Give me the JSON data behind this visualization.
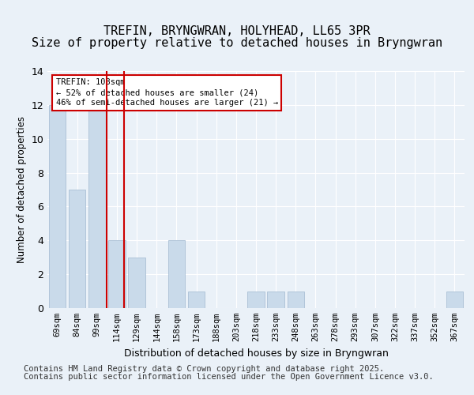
{
  "title1": "TREFIN, BRYNGWRAN, HOLYHEAD, LL65 3PR",
  "title2": "Size of property relative to detached houses in Bryngwran",
  "xlabel": "Distribution of detached houses by size in Bryngwran",
  "ylabel": "Number of detached properties",
  "categories": [
    "69sqm",
    "84sqm",
    "99sqm",
    "114sqm",
    "129sqm",
    "144sqm",
    "158sqm",
    "173sqm",
    "188sqm",
    "203sqm",
    "218sqm",
    "233sqm",
    "248sqm",
    "263sqm",
    "278sqm",
    "293sqm",
    "307sqm",
    "322sqm",
    "337sqm",
    "352sqm",
    "367sqm"
  ],
  "values": [
    12,
    7,
    12,
    4,
    3,
    0,
    4,
    1,
    0,
    0,
    1,
    1,
    1,
    0,
    0,
    0,
    0,
    0,
    0,
    0,
    1
  ],
  "bar_color": "#c9daea",
  "bar_edge_color": "#a0b8cf",
  "red_line_index": 3,
  "red_line_color": "#cc0000",
  "annotation_title": "TREFIN: 108sqm",
  "annotation_line1": "← 52% of detached houses are smaller (24)",
  "annotation_line2": "46% of semi-detached houses are larger (21) →",
  "annotation_box_color": "#ffffff",
  "annotation_border_color": "#cc0000",
  "ylim": [
    0,
    14
  ],
  "yticks": [
    0,
    2,
    4,
    6,
    8,
    10,
    12,
    14
  ],
  "footer_line1": "Contains HM Land Registry data © Crown copyright and database right 2025.",
  "footer_line2": "Contains public sector information licensed under the Open Government Licence v3.0.",
  "bg_color": "#eaf1f8",
  "plot_bg_color": "#eaf1f8",
  "grid_color": "#ffffff",
  "title1_fontsize": 11,
  "title2_fontsize": 11,
  "footer_fontsize": 7.5
}
